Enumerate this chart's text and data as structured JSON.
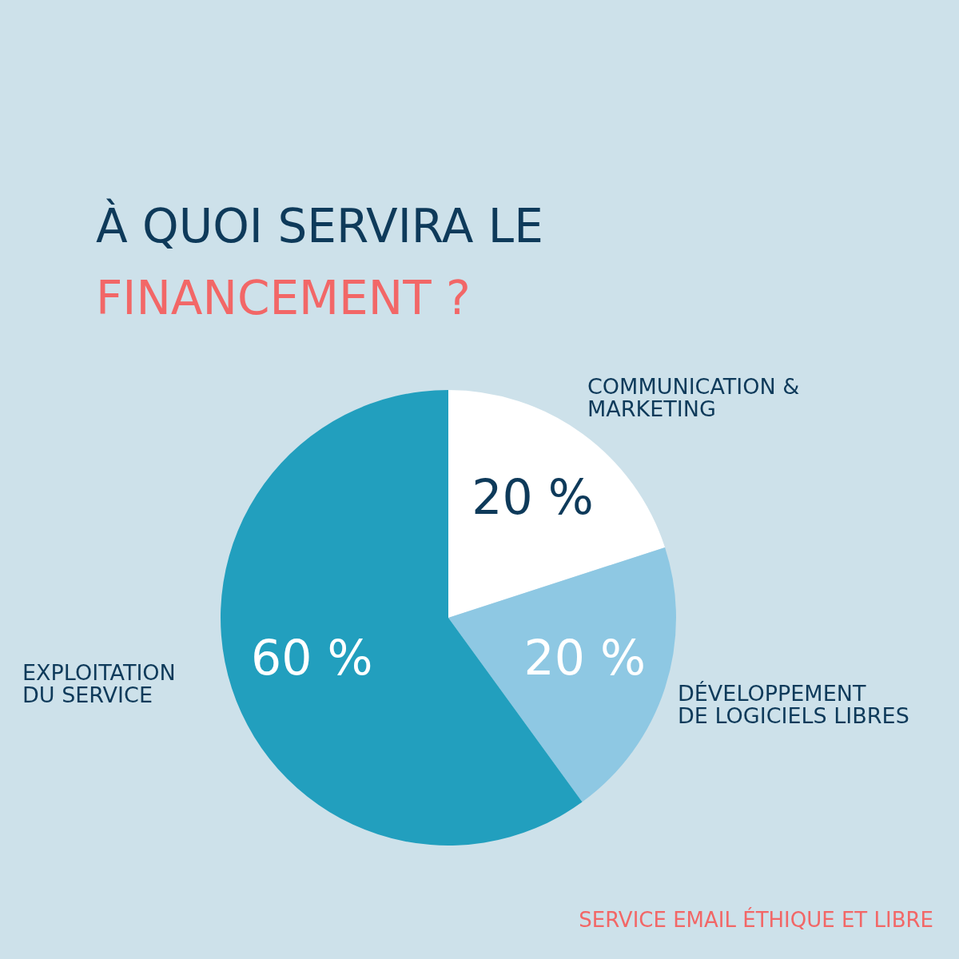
{
  "chart_data": {
    "type": "pie",
    "title": "À QUOI SERVIRA LE\nFINANCEMENT ?",
    "categories": [
      "COMMUNICATION &\nMARKETING",
      "DÉVELOPPEMENT\nDE LOGICIELS LIBRES",
      "EXPLOITATION\nDU SERVICE"
    ],
    "values": [
      20,
      20,
      60
    ],
    "colors": [
      "#ffffff",
      "#8ec8e3",
      "#229fbe"
    ],
    "value_labels": [
      "20 %",
      "20 %",
      "60 %"
    ],
    "legend": false,
    "annotations": [
      "SERVICE EMAIL ÉTHIQUE ET LIBRE"
    ]
  }
}
